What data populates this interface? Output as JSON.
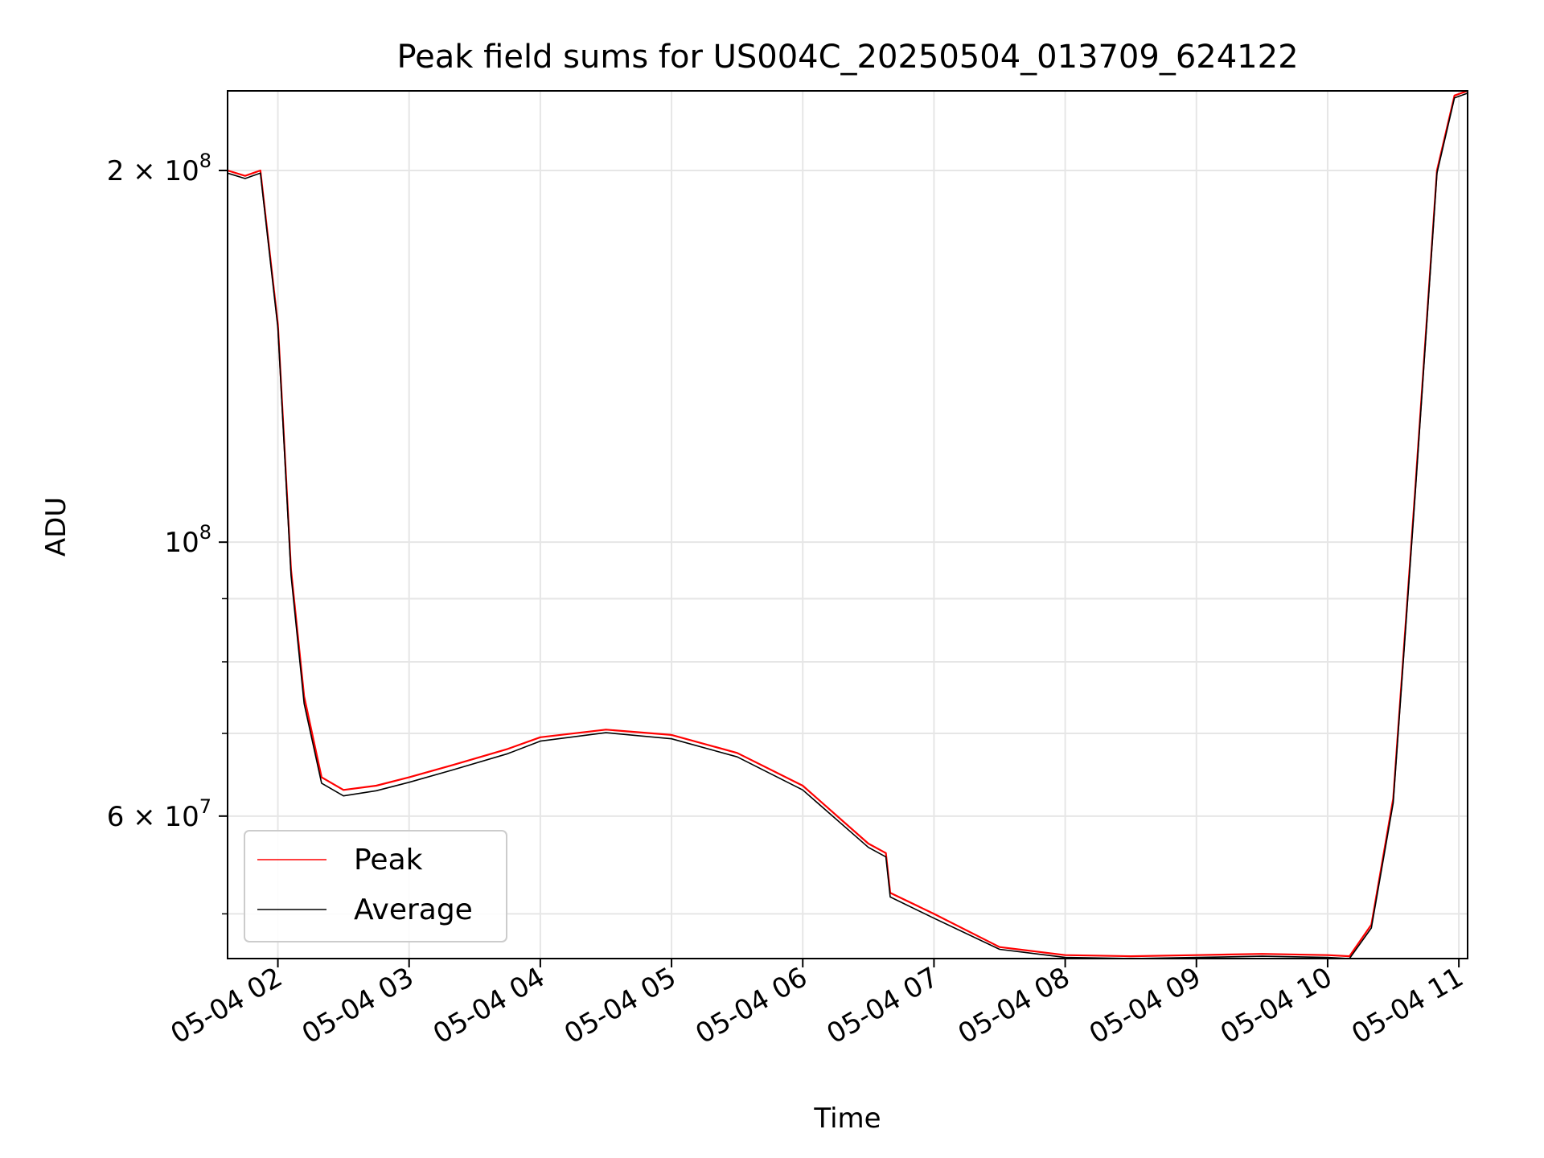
{
  "chart_data": {
    "type": "line",
    "title": "Peak field sums for US004C_20250504_013709_624122",
    "xlabel": "Time",
    "ylabel": "ADU",
    "yscale": "log",
    "ylim": [
      46000000,
      232000000
    ],
    "xlim": [
      "05-04 01:37",
      "05-04 11:04"
    ],
    "grid": true,
    "legend_position": "lower-left",
    "x_ticks": [
      "05-04 02",
      "05-04 03",
      "05-04 04",
      "05-04 05",
      "05-04 06",
      "05-04 07",
      "05-04 08",
      "05-04 09",
      "05-04 10",
      "05-04 11"
    ],
    "y_ticks": [
      {
        "value": 200000000,
        "base": "2 × 10",
        "exp": "8"
      },
      {
        "value": 100000000,
        "base": "10",
        "exp": "8"
      },
      {
        "value": 60000000,
        "base": "6 × 10",
        "exp": "7"
      }
    ],
    "series": [
      {
        "name": "Peak",
        "color": "#ff0000",
        "points": [
          [
            "05-04 01:37",
            200000000
          ],
          [
            "05-04 01:45",
            198000000
          ],
          [
            "05-04 01:52",
            200000000
          ],
          [
            "05-04 02:00",
            150000000
          ],
          [
            "05-04 02:06",
            95000000
          ],
          [
            "05-04 02:12",
            75000000
          ],
          [
            "05-04 02:20",
            64500000
          ],
          [
            "05-04 02:30",
            63000000
          ],
          [
            "05-04 02:45",
            63500000
          ],
          [
            "05-04 03:00",
            64500000
          ],
          [
            "05-04 03:20",
            66000000
          ],
          [
            "05-04 03:45",
            68000000
          ],
          [
            "05-04 04:00",
            69500000
          ],
          [
            "05-04 04:30",
            70500000
          ],
          [
            "05-04 05:00",
            69800000
          ],
          [
            "05-04 05:30",
            67500000
          ],
          [
            "05-04 06:00",
            63500000
          ],
          [
            "05-04 06:30",
            57000000
          ],
          [
            "05-04 06:38",
            56000000
          ],
          [
            "05-04 06:40",
            52000000
          ],
          [
            "05-04 07:00",
            50000000
          ],
          [
            "05-04 07:30",
            47000000
          ],
          [
            "05-04 08:00",
            46300000
          ],
          [
            "05-04 08:30",
            46200000
          ],
          [
            "05-04 09:00",
            46300000
          ],
          [
            "05-04 09:30",
            46400000
          ],
          [
            "05-04 10:00",
            46300000
          ],
          [
            "05-04 10:10",
            46200000
          ],
          [
            "05-04 10:20",
            49000000
          ],
          [
            "05-04 10:30",
            62000000
          ],
          [
            "05-04 10:40",
            110000000
          ],
          [
            "05-04 10:50",
            200000000
          ],
          [
            "05-04 10:58",
            230000000
          ],
          [
            "05-04 11:04",
            232000000
          ]
        ]
      },
      {
        "name": "Average",
        "color": "#000000",
        "points": [
          [
            "05-04 01:37",
            199000000
          ],
          [
            "05-04 01:45",
            197000000
          ],
          [
            "05-04 01:52",
            199000000
          ],
          [
            "05-04 02:00",
            149000000
          ],
          [
            "05-04 02:06",
            94000000
          ],
          [
            "05-04 02:12",
            74000000
          ],
          [
            "05-04 02:20",
            63800000
          ],
          [
            "05-04 02:30",
            62300000
          ],
          [
            "05-04 02:45",
            62900000
          ],
          [
            "05-04 03:00",
            63900000
          ],
          [
            "05-04 03:20",
            65400000
          ],
          [
            "05-04 03:45",
            67400000
          ],
          [
            "05-04 04:00",
            69000000
          ],
          [
            "05-04 04:30",
            70100000
          ],
          [
            "05-04 05:00",
            69300000
          ],
          [
            "05-04 05:30",
            67000000
          ],
          [
            "05-04 06:00",
            63000000
          ],
          [
            "05-04 06:30",
            56600000
          ],
          [
            "05-04 06:38",
            55600000
          ],
          [
            "05-04 06:40",
            51600000
          ],
          [
            "05-04 07:00",
            49600000
          ],
          [
            "05-04 07:30",
            46800000
          ],
          [
            "05-04 08:00",
            46100000
          ],
          [
            "05-04 08:30",
            46000000
          ],
          [
            "05-04 09:00",
            46100000
          ],
          [
            "05-04 09:30",
            46200000
          ],
          [
            "05-04 10:00",
            46100000
          ],
          [
            "05-04 10:10",
            46000000
          ],
          [
            "05-04 10:20",
            48700000
          ],
          [
            "05-04 10:30",
            61500000
          ],
          [
            "05-04 10:40",
            109000000
          ],
          [
            "05-04 10:50",
            199000000
          ],
          [
            "05-04 10:58",
            229000000
          ],
          [
            "05-04 11:04",
            231000000
          ]
        ]
      }
    ]
  }
}
